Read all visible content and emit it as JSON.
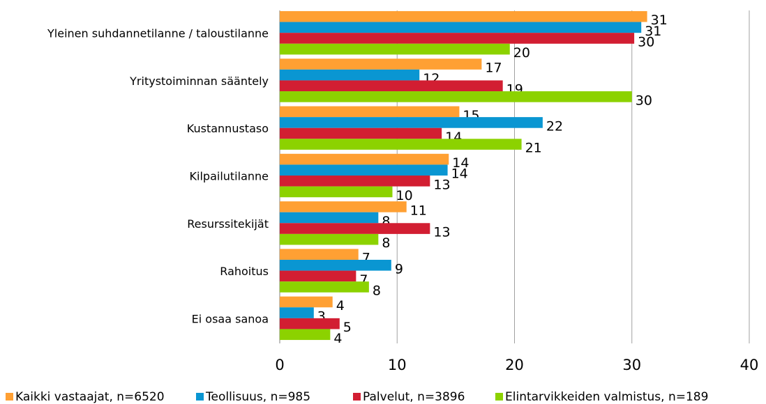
{
  "chart_data": {
    "type": "hbar",
    "categories": [
      "Yleinen suhdannetilanne / taloustilanne",
      "Yritystoiminnan sääntely",
      "Kustannustaso",
      "Kilpailutilanne",
      "Resurssitekijät",
      "Rahoitus",
      "Ei osaa sanoa"
    ],
    "series": [
      {
        "name": "Kaikki vastaajat, n=6520",
        "color": "#ffa033",
        "values": [
          31.3,
          17.2,
          15.3,
          14.4,
          10.8,
          6.7,
          4.5
        ],
        "value_labels": [
          "31",
          "17",
          "15",
          "14",
          "11",
          "7",
          "4"
        ]
      },
      {
        "name": "Teollisuus, n=985",
        "color": "#0a96d2",
        "values": [
          30.8,
          11.9,
          22.4,
          14.3,
          8.4,
          9.5,
          2.9
        ],
        "value_labels": [
          "31",
          "12",
          "22",
          "14",
          "8",
          "9",
          "3"
        ]
      },
      {
        "name": "Palvelut, n=3896",
        "color": "#d21e32",
        "values": [
          30.2,
          19.0,
          13.8,
          12.8,
          12.8,
          6.5,
          5.1
        ],
        "value_labels": [
          "30",
          "19",
          "14",
          "13",
          "13",
          "7",
          "5"
        ]
      },
      {
        "name": "Elintarvikkeiden valmistus, n=189",
        "color": "#8cd200",
        "values": [
          19.6,
          30.0,
          20.6,
          9.6,
          8.4,
          7.6,
          4.3
        ],
        "value_labels": [
          "20",
          "30",
          "21",
          "10",
          "8",
          "8",
          "4"
        ]
      }
    ],
    "xlim": [
      0,
      40
    ],
    "xticks": [
      0,
      10,
      20,
      30,
      40
    ],
    "grid": true,
    "legend": "bottom"
  }
}
